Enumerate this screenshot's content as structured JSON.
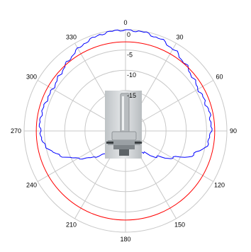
{
  "chart_data": {
    "type": "polar-line",
    "title": "",
    "angle_ticks": [
      "0",
      "30",
      "60",
      "90",
      "120",
      "150",
      "180",
      "210",
      "240",
      "270",
      "300",
      "330"
    ],
    "radial_ticks": [
      "0",
      "-5",
      "-10",
      "-15"
    ],
    "rlim": [
      -25,
      0
    ],
    "grid": true,
    "series": [
      {
        "color": "#0000ff",
        "angles": [
          0,
          10,
          20,
          30,
          40,
          50,
          60,
          70,
          80,
          90,
          100,
          110,
          120,
          130,
          140,
          150,
          160,
          170,
          180,
          190,
          200,
          210,
          220,
          230,
          240,
          250,
          260,
          270,
          280,
          290,
          300,
          310,
          320,
          330,
          340,
          350
        ],
        "values": [
          0,
          -0.2,
          -0.7,
          -1.6,
          -2.7,
          -3.7,
          -4.3,
          -4.1,
          -3.8,
          -3.9,
          -4.6,
          -7.5,
          -11.8,
          -15.1,
          -18.0,
          -21.0,
          -24.0,
          -25.0,
          -25.0,
          -25.0,
          -24.0,
          -21.0,
          -18.0,
          -15.0,
          -11.5,
          -7.5,
          -4.7,
          -3.9,
          -3.8,
          -4.1,
          -4.3,
          -3.8,
          -2.8,
          -1.6,
          -0.7,
          -0.2
        ]
      },
      {
        "color": "#ff0000",
        "angles": [
          0,
          90,
          180,
          270
        ],
        "values": [
          -3,
          -3,
          -3,
          -3
        ]
      }
    ],
    "inset_image": "antenna-device-photo"
  }
}
